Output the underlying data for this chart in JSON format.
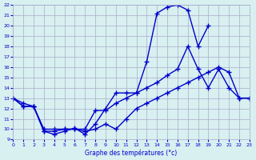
{
  "xlabel": "Graphe des températures (°c)",
  "hours": [
    0,
    1,
    2,
    3,
    4,
    5,
    6,
    7,
    8,
    9,
    10,
    11,
    12,
    13,
    14,
    15,
    16,
    17,
    18,
    19,
    20,
    21,
    22,
    23
  ],
  "y1_raw": [
    13.0,
    12.2,
    12.2,
    9.8,
    9.5,
    9.8,
    10.1,
    9.5,
    10.5,
    12.0,
    13.5,
    13.5,
    13.5,
    16.5,
    21.2,
    21.8,
    22.0,
    21.5,
    18.0,
    20.0,
    null,
    null,
    null,
    null
  ],
  "y2_raw": [
    13.0,
    12.5,
    12.2,
    10.0,
    10.0,
    10.0,
    10.0,
    10.0,
    11.8,
    11.8,
    12.5,
    13.0,
    13.5,
    14.0,
    14.5,
    15.2,
    15.8,
    18.0,
    15.8,
    14.0,
    15.8,
    14.0,
    13.0,
    13.0
  ],
  "y3_raw": [
    13.0,
    12.2,
    12.2,
    9.8,
    9.8,
    10.0,
    10.0,
    9.8,
    10.0,
    10.5,
    10.0,
    11.0,
    12.0,
    12.5,
    13.0,
    13.5,
    14.0,
    14.5,
    15.0,
    15.5,
    16.0,
    15.5,
    13.0,
    13.0
  ],
  "line_color": "#0000cc",
  "bg_color": "#d8f0f0",
  "grid_color": "#aaaacc",
  "xlim": [
    0,
    23
  ],
  "ylim": [
    9,
    22
  ],
  "yticks": [
    9,
    10,
    11,
    12,
    13,
    14,
    15,
    16,
    17,
    18,
    19,
    20,
    21,
    22
  ],
  "xticks": [
    0,
    1,
    2,
    3,
    4,
    5,
    6,
    7,
    8,
    9,
    10,
    11,
    12,
    13,
    14,
    15,
    16,
    17,
    18,
    19,
    20,
    21,
    22,
    23
  ]
}
